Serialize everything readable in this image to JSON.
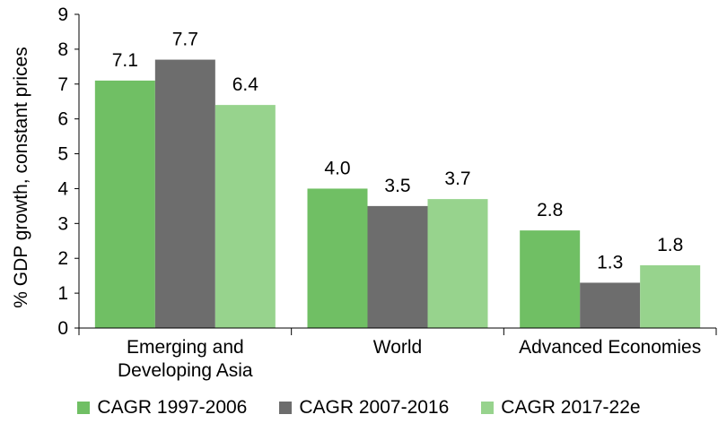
{
  "chart_data": {
    "type": "bar",
    "ylabel": "% GDP growth, constant prices",
    "xlabel": "",
    "ylim": [
      0,
      9
    ],
    "yticks": [
      "0",
      "1",
      "2",
      "3",
      "4",
      "5",
      "6",
      "7",
      "8",
      "9"
    ],
    "categories": [
      [
        "Emerging and",
        "Developing Asia"
      ],
      [
        "World"
      ],
      [
        "Advanced Economies"
      ]
    ],
    "series": [
      {
        "name": "CAGR 1997-2006",
        "color": "#70bf64",
        "values": [
          7.1,
          4.0,
          2.8
        ],
        "labels": [
          "7.1",
          "4.0",
          "2.8"
        ]
      },
      {
        "name": "CAGR 2007-2016",
        "color": "#6d6d6d",
        "values": [
          7.7,
          3.5,
          1.3
        ],
        "labels": [
          "7.7",
          "3.5",
          "1.3"
        ]
      },
      {
        "name": "CAGR 2017-22e",
        "color": "#97d38d",
        "values": [
          6.4,
          3.7,
          1.8
        ],
        "labels": [
          "6.4",
          "3.7",
          "1.8"
        ]
      }
    ],
    "grid": false,
    "legend_position": "bottom"
  }
}
